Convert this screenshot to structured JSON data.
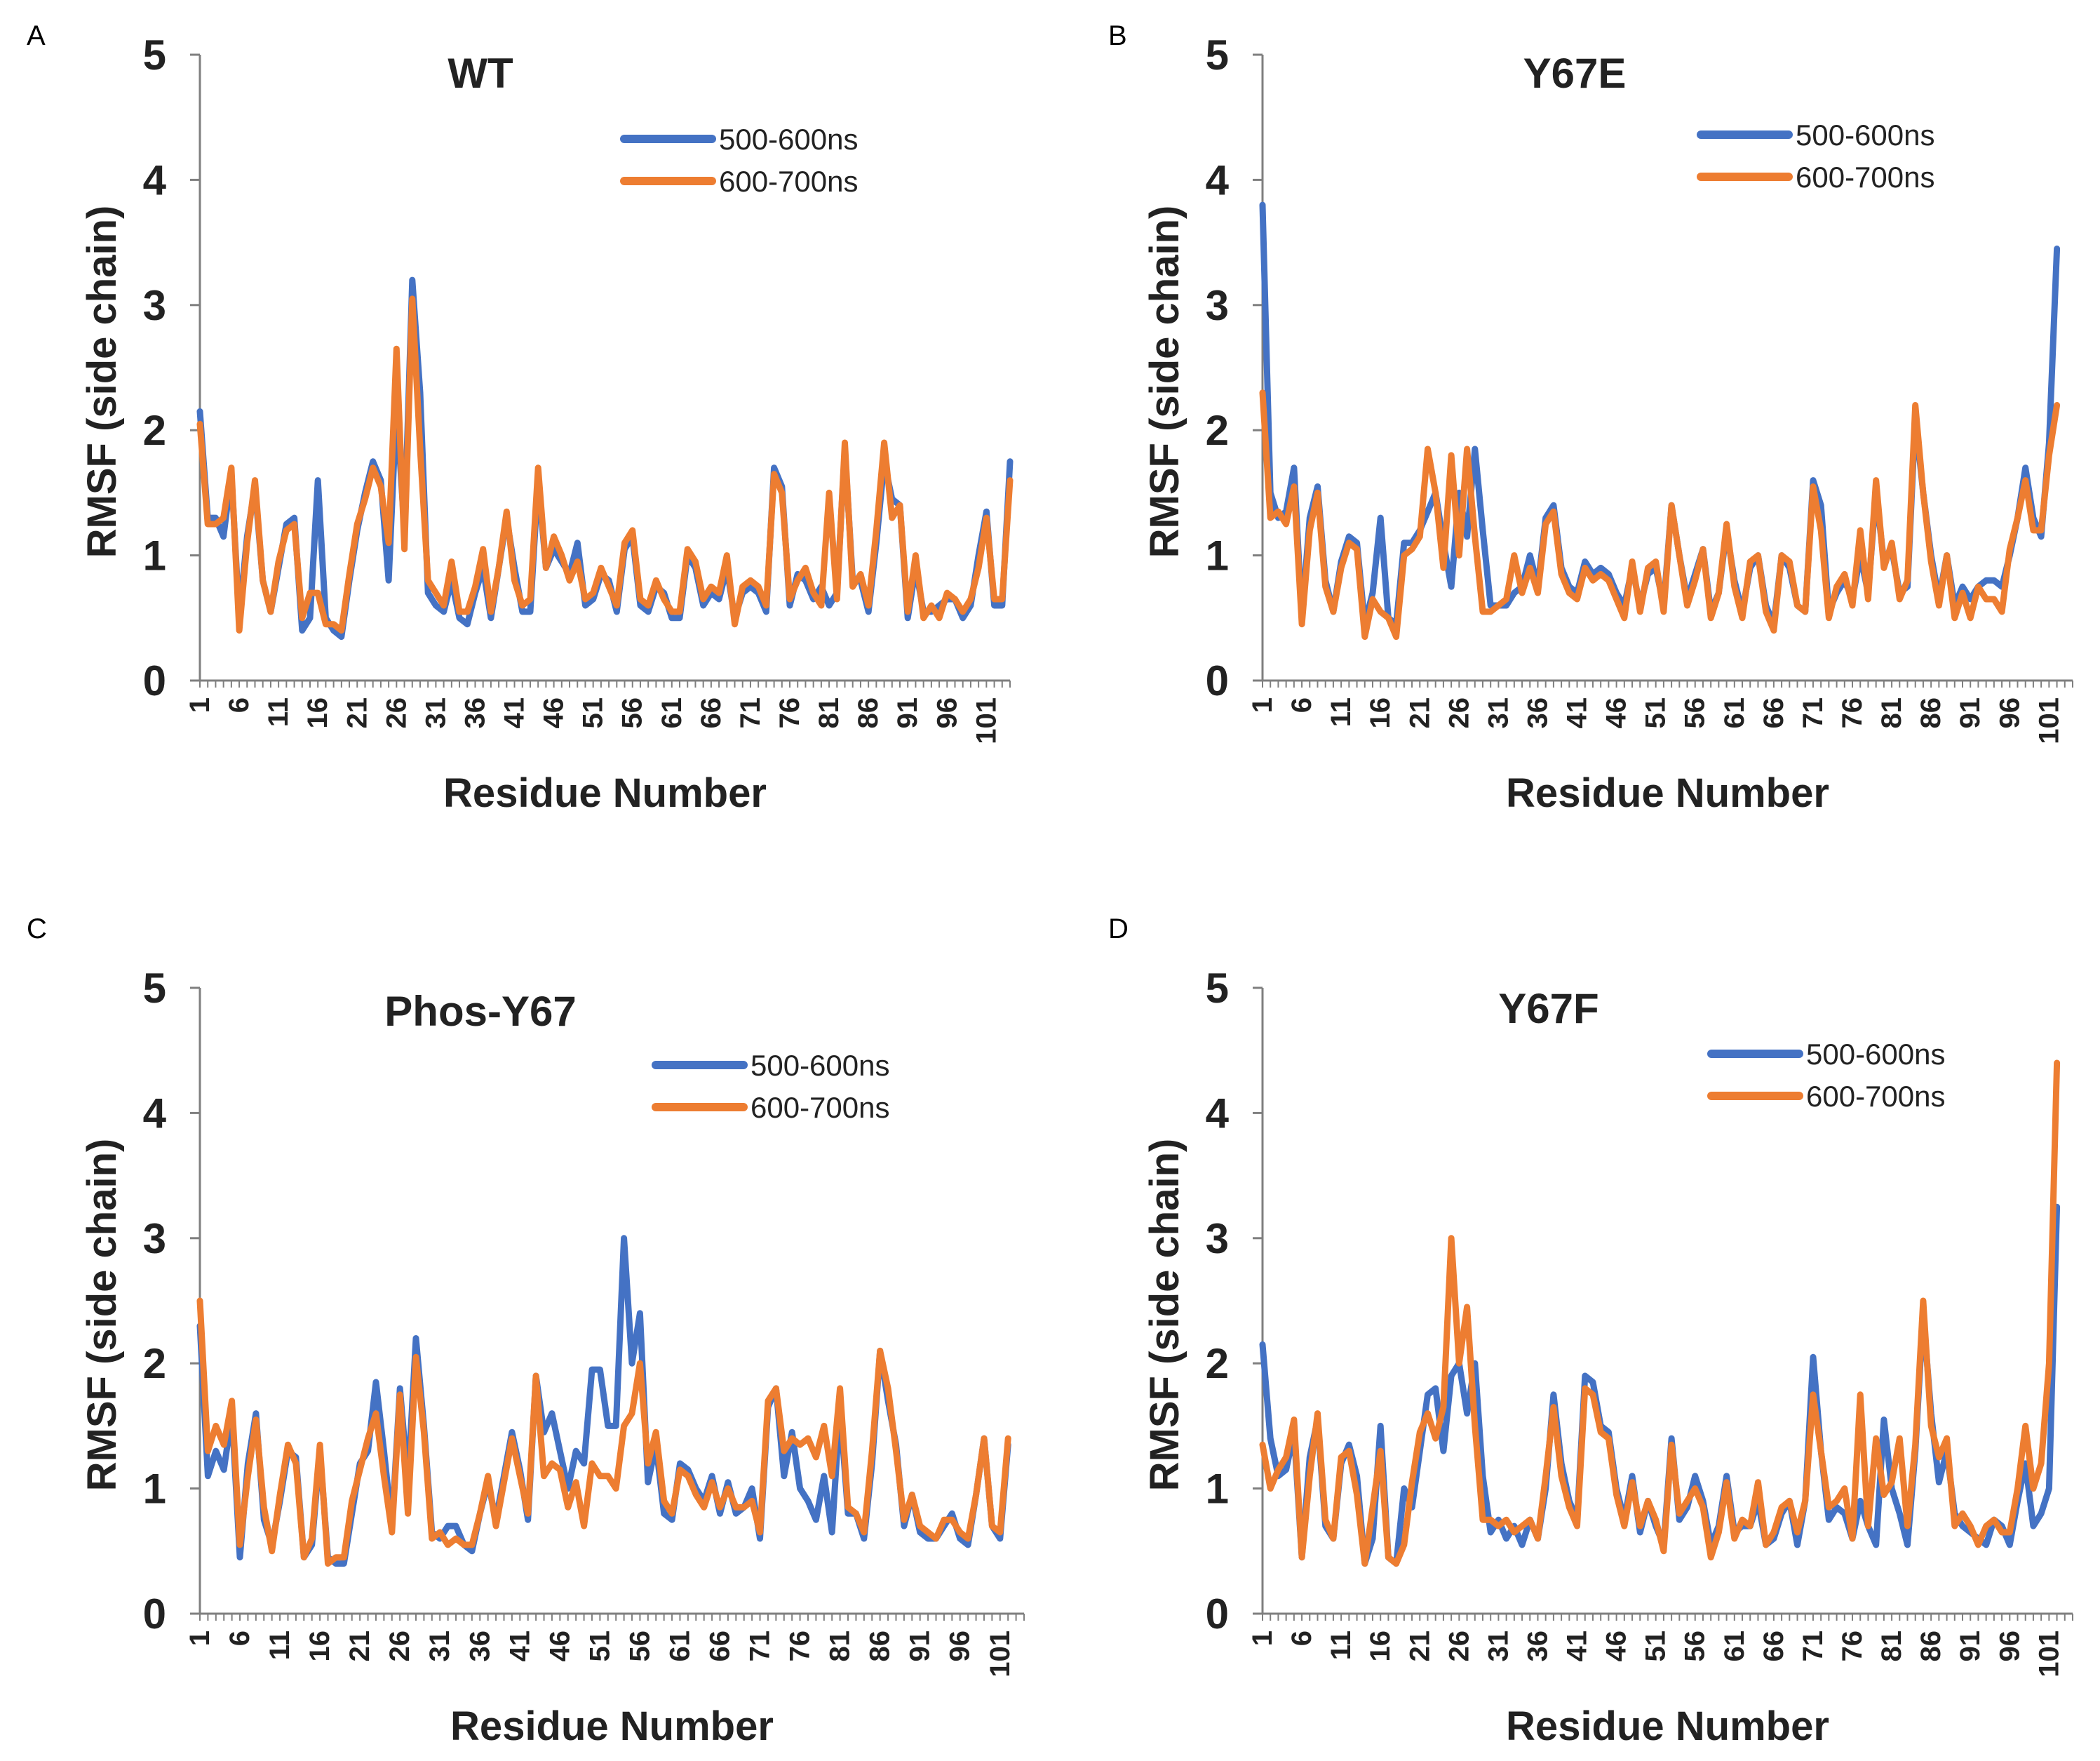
{
  "colors": {
    "s1": "#4472C4",
    "s2": "#ED7D31",
    "axis": "#7f7f7f"
  },
  "series_names": [
    "500-600ns",
    "600-700ns"
  ],
  "x_ticks": [
    "1",
    "6",
    "11",
    "16",
    "21",
    "26",
    "31",
    "36",
    "41",
    "46",
    "51",
    "56",
    "61",
    "66",
    "71",
    "76",
    "81",
    "86",
    "91",
    "96",
    "101"
  ],
  "chart_data": [
    {
      "panel": "A",
      "title": "WT",
      "type": "line",
      "xlabel": "Residue Number",
      "ylabel": "RMSF (side chain)",
      "xlim": [
        1,
        104
      ],
      "ylim": [
        0,
        5
      ],
      "yticks": [
        "0",
        "1",
        "2",
        "3",
        "4",
        "5"
      ],
      "legend": "top-right",
      "series": [
        {
          "name": "500-600ns",
          "values": [
            2.15,
            1.3,
            1.3,
            1.15,
            1.65,
            0.5,
            1.15,
            1.55,
            0.8,
            0.55,
            0.9,
            1.25,
            1.3,
            0.4,
            0.5,
            1.6,
            0.5,
            0.4,
            0.35,
            0.8,
            1.2,
            1.5,
            1.75,
            1.6,
            0.8,
            2.2,
            1.2,
            3.2,
            2.3,
            0.7,
            0.6,
            0.55,
            0.8,
            0.5,
            0.45,
            0.7,
            0.9,
            0.5,
            0.9,
            1.3,
            0.9,
            0.55,
            0.55,
            1.6,
            0.9,
            1.05,
            0.95,
            0.85,
            1.1,
            0.6,
            0.65,
            0.85,
            0.8,
            0.55,
            1.05,
            1.15,
            0.6,
            0.55,
            0.75,
            0.7,
            0.5,
            0.5,
            1.0,
            0.9,
            0.6,
            0.7,
            0.65,
            0.9,
            0.5,
            0.7,
            0.75,
            0.7,
            0.55,
            1.7,
            1.55,
            0.6,
            0.85,
            0.8,
            0.65,
            0.75,
            0.6,
            0.7,
            1.85,
            0.8,
            0.8,
            0.55,
            1.1,
            1.75,
            1.45,
            1.4,
            0.5,
            0.9,
            0.55,
            0.55,
            0.6,
            0.65,
            0.65,
            0.5,
            0.6,
            1.0,
            1.35,
            0.6,
            0.6,
            1.75
          ]
        },
        {
          "name": "600-700ns",
          "values": [
            2.05,
            1.25,
            1.25,
            1.3,
            1.7,
            0.4,
            1.1,
            1.6,
            0.8,
            0.55,
            0.95,
            1.2,
            1.25,
            0.5,
            0.7,
            0.7,
            0.45,
            0.45,
            0.4,
            0.85,
            1.25,
            1.45,
            1.7,
            1.55,
            1.1,
            2.65,
            1.05,
            3.05,
            1.85,
            0.8,
            0.7,
            0.6,
            0.95,
            0.55,
            0.55,
            0.75,
            1.05,
            0.55,
            0.9,
            1.35,
            0.8,
            0.6,
            0.65,
            1.7,
            0.9,
            1.15,
            1.0,
            0.8,
            0.95,
            0.65,
            0.7,
            0.9,
            0.75,
            0.6,
            1.1,
            1.2,
            0.65,
            0.6,
            0.8,
            0.65,
            0.55,
            0.55,
            1.05,
            0.95,
            0.65,
            0.75,
            0.7,
            1.0,
            0.45,
            0.75,
            0.8,
            0.75,
            0.6,
            1.65,
            1.5,
            0.65,
            0.8,
            0.9,
            0.7,
            0.6,
            1.5,
            0.65,
            1.9,
            0.75,
            0.85,
            0.6,
            1.2,
            1.9,
            1.3,
            1.4,
            0.55,
            1.0,
            0.5,
            0.6,
            0.5,
            0.7,
            0.65,
            0.55,
            0.65,
            0.9,
            1.3,
            0.65,
            0.65,
            1.6
          ]
        }
      ]
    },
    {
      "panel": "B",
      "title": "Y67E",
      "type": "line",
      "xlabel": "Residue Number",
      "ylabel": "RMSF (side chain)",
      "xlim": [
        1,
        104
      ],
      "ylim": [
        0,
        5
      ],
      "yticks": [
        "0",
        "1",
        "2",
        "3",
        "4",
        "5"
      ],
      "legend": "top-right",
      "series": [
        {
          "name": "500-600ns",
          "values": [
            3.8,
            1.5,
            1.3,
            1.35,
            1.7,
            0.5,
            1.3,
            1.55,
            0.8,
            0.55,
            0.95,
            1.15,
            1.1,
            0.45,
            0.7,
            1.3,
            0.5,
            0.45,
            1.1,
            1.1,
            1.2,
            1.35,
            1.5,
            1.1,
            0.75,
            1.5,
            1.15,
            1.85,
            1.2,
            0.6,
            0.6,
            0.6,
            0.7,
            0.75,
            1.0,
            0.75,
            1.3,
            1.4,
            0.9,
            0.75,
            0.7,
            0.95,
            0.85,
            0.9,
            0.85,
            0.7,
            0.6,
            0.9,
            0.6,
            0.85,
            0.9,
            0.6,
            1.4,
            1.0,
            0.65,
            0.85,
            1.05,
            0.55,
            0.7,
            1.2,
            0.8,
            0.55,
            0.9,
            1.0,
            0.6,
            0.45,
            1.0,
            0.9,
            0.6,
            0.55,
            1.6,
            1.4,
            0.55,
            0.7,
            0.8,
            0.65,
            1.0,
            0.7,
            1.5,
            0.95,
            1.05,
            0.7,
            0.75,
            2.1,
            1.5,
            1.0,
            0.65,
            1.0,
            0.6,
            0.75,
            0.65,
            0.75,
            0.8,
            0.8,
            0.75,
            1.0,
            1.3,
            1.7,
            1.3,
            1.15,
            1.9,
            3.45
          ]
        },
        {
          "name": "600-700ns",
          "values": [
            2.3,
            1.3,
            1.35,
            1.25,
            1.55,
            0.45,
            1.2,
            1.5,
            0.75,
            0.55,
            0.9,
            1.1,
            1.05,
            0.35,
            0.65,
            0.55,
            0.5,
            0.35,
            1.0,
            1.05,
            1.15,
            1.85,
            1.5,
            0.9,
            1.8,
            1.0,
            1.85,
            1.15,
            0.55,
            0.55,
            0.6,
            0.65,
            1.0,
            0.7,
            0.9,
            0.7,
            1.25,
            1.35,
            0.85,
            0.7,
            0.65,
            0.9,
            0.8,
            0.85,
            0.8,
            0.65,
            0.5,
            0.95,
            0.55,
            0.9,
            0.95,
            0.55,
            1.4,
            1.0,
            0.6,
            0.8,
            1.05,
            0.5,
            0.7,
            1.25,
            0.75,
            0.5,
            0.95,
            1.0,
            0.55,
            0.4,
            1.0,
            0.95,
            0.6,
            0.55,
            1.55,
            1.2,
            0.5,
            0.75,
            0.85,
            0.6,
            1.2,
            0.65,
            1.6,
            0.9,
            1.1,
            0.65,
            0.8,
            2.2,
            1.5,
            0.95,
            0.6,
            1.0,
            0.5,
            0.7,
            0.5,
            0.75,
            0.65,
            0.65,
            0.55,
            1.05,
            1.3,
            1.6,
            1.2,
            1.2,
            1.8,
            2.2
          ]
        }
      ]
    },
    {
      "panel": "C",
      "title": "Phos-Y67",
      "type": "line",
      "xlabel": "Residue Number",
      "ylabel": "RMSF (side chain)",
      "xlim": [
        1,
        104
      ],
      "ylim": [
        0,
        5
      ],
      "yticks": [
        "0",
        "1",
        "2",
        "3",
        "4",
        "5"
      ],
      "legend": "top-right",
      "series": [
        {
          "name": "500-600ns",
          "values": [
            2.3,
            1.1,
            1.3,
            1.15,
            1.6,
            0.45,
            1.2,
            1.6,
            0.75,
            0.55,
            0.9,
            1.3,
            1.25,
            0.45,
            0.55,
            1.3,
            0.45,
            0.4,
            0.4,
            0.8,
            1.2,
            1.3,
            1.85,
            1.3,
            0.7,
            1.8,
            1.05,
            2.2,
            1.5,
            0.65,
            0.6,
            0.7,
            0.7,
            0.55,
            0.5,
            0.8,
            1.05,
            0.75,
            1.1,
            1.45,
            1.15,
            0.75,
            1.9,
            1.45,
            1.6,
            1.3,
            1.0,
            1.3,
            1.2,
            1.95,
            1.95,
            1.5,
            1.5,
            3.0,
            2.0,
            2.4,
            1.05,
            1.35,
            0.8,
            0.75,
            1.2,
            1.15,
            1.0,
            0.9,
            1.1,
            0.8,
            1.05,
            0.8,
            0.85,
            1.0,
            0.6,
            1.65,
            1.8,
            1.1,
            1.45,
            1.0,
            0.9,
            0.75,
            1.1,
            0.65,
            1.65,
            0.8,
            0.8,
            0.6,
            1.2,
            2.1,
            1.7,
            1.35,
            0.7,
            0.95,
            0.65,
            0.6,
            0.6,
            0.7,
            0.8,
            0.6,
            0.55,
            0.95,
            1.4,
            0.7,
            0.6,
            1.35
          ]
        },
        {
          "name": "600-700ns",
          "values": [
            2.5,
            1.3,
            1.5,
            1.35,
            1.7,
            0.55,
            1.1,
            1.55,
            0.85,
            0.5,
            0.95,
            1.35,
            1.2,
            0.45,
            0.6,
            1.35,
            0.4,
            0.45,
            0.45,
            0.9,
            1.15,
            1.4,
            1.6,
            1.1,
            0.65,
            1.75,
            0.8,
            2.05,
            1.45,
            0.6,
            0.65,
            0.55,
            0.6,
            0.55,
            0.55,
            0.8,
            1.1,
            0.7,
            1.05,
            1.4,
            1.1,
            0.8,
            1.9,
            1.1,
            1.2,
            1.15,
            0.85,
            1.05,
            0.7,
            1.2,
            1.1,
            1.1,
            1.0,
            1.5,
            1.6,
            2.0,
            1.2,
            1.45,
            0.9,
            0.8,
            1.15,
            1.1,
            0.95,
            0.85,
            1.05,
            0.85,
            1.0,
            0.85,
            0.85,
            0.9,
            0.65,
            1.7,
            1.8,
            1.3,
            1.4,
            1.35,
            1.4,
            1.25,
            1.5,
            1.1,
            1.8,
            0.85,
            0.8,
            0.65,
            1.3,
            2.1,
            1.8,
            1.3,
            0.75,
            0.95,
            0.7,
            0.65,
            0.6,
            0.75,
            0.75,
            0.65,
            0.6,
            0.95,
            1.4,
            0.7,
            0.65,
            1.4
          ]
        }
      ]
    },
    {
      "panel": "D",
      "title": "Y67F",
      "type": "line",
      "xlabel": "Residue Number",
      "ylabel": "RMSF (side chain)",
      "xlim": [
        1,
        104
      ],
      "ylim": [
        0,
        5
      ],
      "yticks": [
        "0",
        "1",
        "2",
        "3",
        "4",
        "5"
      ],
      "legend": "top-right",
      "series": [
        {
          "name": "500-600ns",
          "values": [
            2.15,
            1.4,
            1.1,
            1.15,
            1.45,
            0.45,
            1.25,
            1.55,
            0.7,
            0.6,
            1.2,
            1.35,
            1.1,
            0.4,
            0.6,
            1.5,
            0.45,
            0.4,
            1.0,
            0.85,
            1.3,
            1.75,
            1.8,
            1.3,
            1.9,
            2.0,
            1.6,
            2.0,
            1.1,
            0.65,
            0.75,
            0.6,
            0.7,
            0.55,
            0.75,
            0.6,
            1.0,
            1.75,
            1.2,
            0.9,
            0.75,
            1.9,
            1.85,
            1.5,
            1.45,
            1.0,
            0.75,
            1.1,
            0.65,
            0.9,
            0.7,
            0.55,
            1.4,
            0.75,
            0.85,
            1.1,
            0.9,
            0.55,
            0.7,
            1.1,
            0.65,
            0.7,
            0.7,
            0.9,
            0.55,
            0.6,
            0.8,
            0.9,
            0.55,
            0.9,
            2.05,
            1.3,
            0.75,
            0.85,
            0.8,
            0.6,
            0.9,
            0.7,
            0.55,
            1.55,
            1.0,
            0.8,
            0.55,
            1.3,
            2.4,
            1.6,
            1.05,
            1.3,
            0.8,
            0.7,
            0.65,
            0.6,
            0.55,
            0.75,
            0.7,
            0.55,
            0.9,
            1.2,
            0.7,
            0.8,
            1.0,
            3.25
          ]
        },
        {
          "name": "600-700ns",
          "values": [
            1.35,
            1.0,
            1.15,
            1.25,
            1.55,
            0.45,
            1.1,
            1.6,
            0.75,
            0.6,
            1.25,
            1.3,
            0.95,
            0.4,
            0.85,
            1.3,
            0.45,
            0.4,
            0.55,
            1.05,
            1.45,
            1.6,
            1.4,
            1.65,
            3.0,
            2.0,
            2.45,
            1.5,
            0.75,
            0.75,
            0.7,
            0.75,
            0.65,
            0.7,
            0.75,
            0.6,
            1.1,
            1.65,
            1.1,
            0.85,
            0.7,
            1.8,
            1.75,
            1.45,
            1.4,
            0.95,
            0.7,
            1.05,
            0.7,
            0.9,
            0.75,
            0.5,
            1.35,
            0.8,
            0.9,
            1.0,
            0.85,
            0.45,
            0.65,
            1.05,
            0.6,
            0.75,
            0.7,
            1.05,
            0.55,
            0.65,
            0.85,
            0.9,
            0.65,
            0.9,
            1.75,
            1.3,
            0.85,
            0.9,
            1.0,
            0.6,
            1.75,
            0.7,
            1.4,
            0.95,
            1.05,
            1.4,
            0.7,
            1.35,
            2.5,
            1.5,
            1.25,
            1.4,
            0.7,
            0.8,
            0.7,
            0.55,
            0.7,
            0.75,
            0.65,
            0.65,
            1.0,
            1.5,
            1.0,
            1.2,
            2.0,
            4.4
          ]
        }
      ]
    }
  ]
}
